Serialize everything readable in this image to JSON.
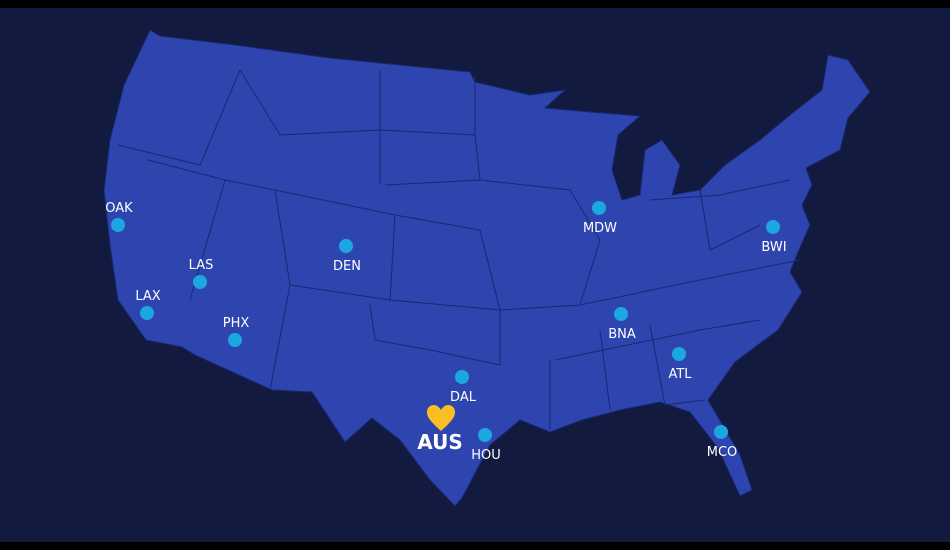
{
  "colors": {
    "background": "#121a3f",
    "land": "#2e45b0",
    "borders": "#1a2770",
    "airport_dot": "#1ca7e0",
    "home": "#fbbf24",
    "label": "#ffffff"
  },
  "home_airport": {
    "code": "AUS",
    "icon": "heart-icon"
  },
  "airports": [
    {
      "code": "OAK",
      "label_pos": "above"
    },
    {
      "code": "LAS",
      "label_pos": "above"
    },
    {
      "code": "LAX",
      "label_pos": "above"
    },
    {
      "code": "PHX",
      "label_pos": "above"
    },
    {
      "code": "DEN",
      "label_pos": "below"
    },
    {
      "code": "DAL",
      "label_pos": "below"
    },
    {
      "code": "HOU",
      "label_pos": "below"
    },
    {
      "code": "MDW",
      "label_pos": "below"
    },
    {
      "code": "BNA",
      "label_pos": "below"
    },
    {
      "code": "ATL",
      "label_pos": "below"
    },
    {
      "code": "BWI",
      "label_pos": "below"
    },
    {
      "code": "MCO",
      "label_pos": "below"
    }
  ]
}
